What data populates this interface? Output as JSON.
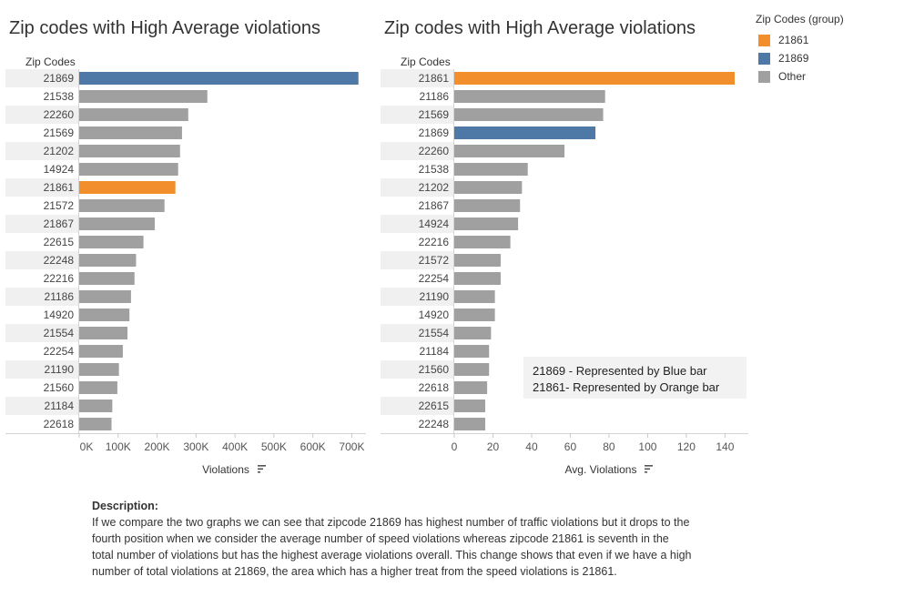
{
  "colors": {
    "orange": "#f28e2b",
    "blue": "#4e79a7",
    "gray": "#a0a0a0",
    "band": "#f0f0f0"
  },
  "legend": {
    "title": "Zip Codes (group)",
    "items": [
      {
        "label": "21861",
        "color": "#f28e2b"
      },
      {
        "label": "21869",
        "color": "#4e79a7"
      },
      {
        "label": "Other",
        "color": "#a0a0a0"
      }
    ]
  },
  "note": {
    "line1": "21869 - Represented by Blue bar",
    "line2": "21861- Represented by Orange bar"
  },
  "description": {
    "heading": "Description:",
    "body": "If we compare the two graphs we can see that zipcode 21869 has highest number of traffic violations but it drops to the fourth position when we consider the average number of speed violations whereas zipcode 21861 is seventh in the total number of violations but has the highest average violations overall. This change shows that even if we have a high number of total violations at 21869, the area which has a higher treat from the speed violations is 21861."
  },
  "chart_data": [
    {
      "type": "bar",
      "orientation": "horizontal",
      "title": "Zip codes with High Average violations",
      "row_header": "Zip Codes",
      "xlabel": "Violations",
      "xlim": [
        0,
        720000
      ],
      "ticks": [
        0,
        100000,
        200000,
        300000,
        400000,
        500000,
        600000,
        700000
      ],
      "tick_labels": [
        "0K",
        "100K",
        "200K",
        "300K",
        "400K",
        "500K",
        "600K",
        "700K"
      ],
      "categories": [
        "21869",
        "21538",
        "22260",
        "21569",
        "21202",
        "14924",
        "21861",
        "21572",
        "21867",
        "22615",
        "22248",
        "22216",
        "21186",
        "14920",
        "21554",
        "22254",
        "21190",
        "21560",
        "21184",
        "22618"
      ],
      "values": [
        717000,
        329000,
        280000,
        264000,
        259000,
        254000,
        247000,
        219000,
        194000,
        165000,
        146000,
        142000,
        133000,
        129000,
        124000,
        112000,
        102000,
        98000,
        85000,
        83000
      ]
    },
    {
      "type": "bar",
      "orientation": "horizontal",
      "title": "Zip codes with High Average violations",
      "row_header": "Zip Codes",
      "xlabel": "Avg. Violations",
      "xlim": [
        0,
        145
      ],
      "ticks": [
        0,
        20,
        40,
        60,
        80,
        100,
        120,
        140
      ],
      "tick_labels": [
        "0",
        "20",
        "40",
        "60",
        "80",
        "100",
        "120",
        "140"
      ],
      "categories": [
        "21861",
        "21186",
        "21569",
        "21869",
        "22260",
        "21538",
        "21202",
        "21867",
        "14924",
        "22216",
        "21572",
        "22254",
        "21190",
        "14920",
        "21554",
        "21184",
        "21560",
        "22618",
        "22615",
        "22248"
      ],
      "values": [
        145,
        78,
        77,
        73,
        57,
        38,
        35,
        34,
        33,
        29,
        24,
        24,
        21,
        21,
        19,
        18,
        18,
        17,
        16,
        16
      ]
    }
  ]
}
